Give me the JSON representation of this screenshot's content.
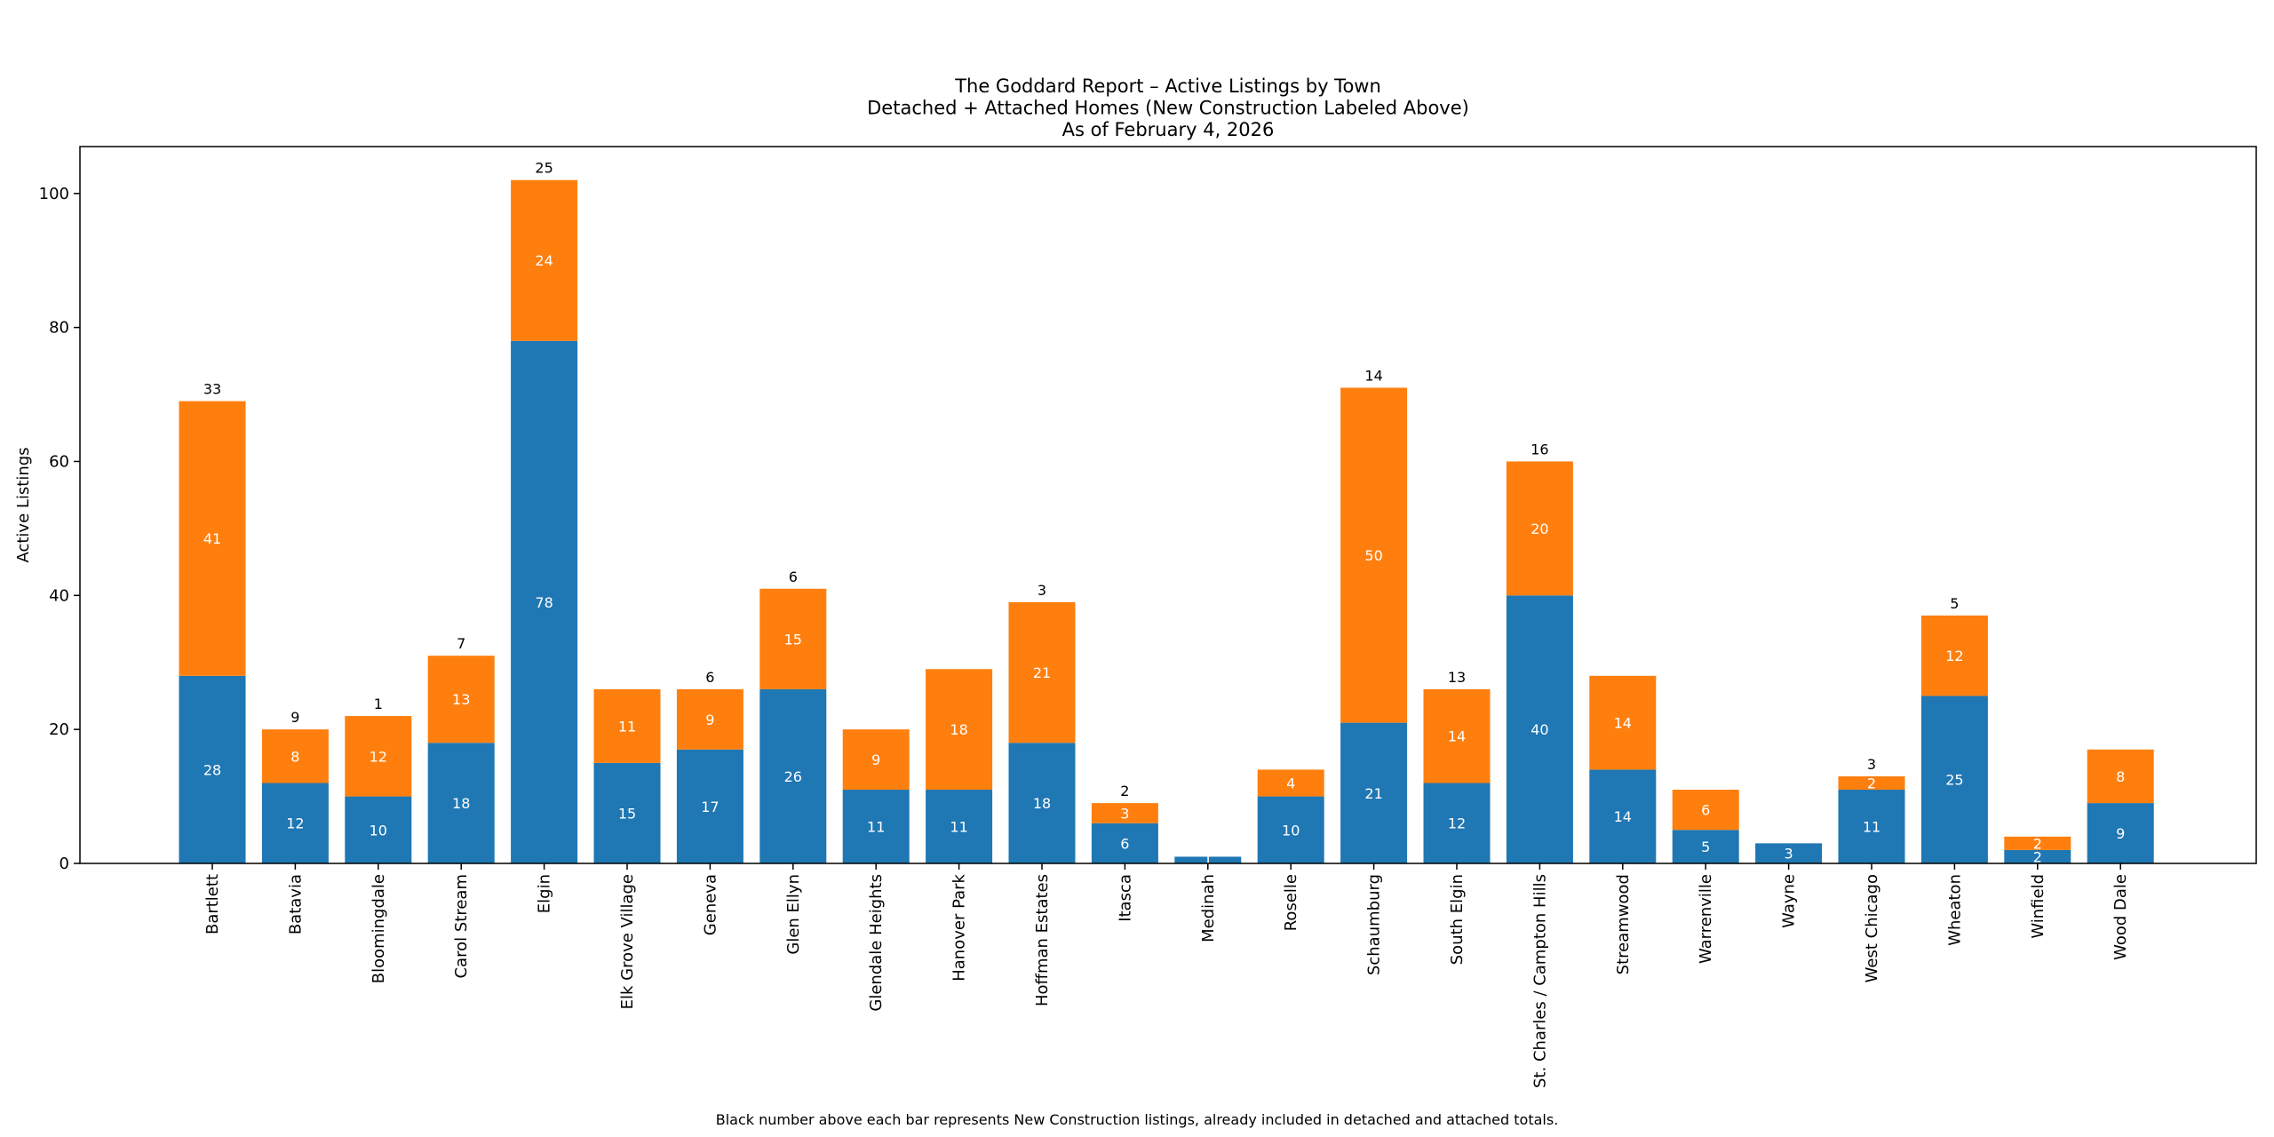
{
  "chart_data": {
    "type": "bar",
    "stacked": true,
    "title_lines": [
      "The Goddard Report – Active Listings by Town",
      "Detached + Attached Homes (New Construction Labeled Above)",
      "As of February 4, 2026"
    ],
    "xlabel": "",
    "ylabel": "Active Listings",
    "ylim": [
      0,
      107
    ],
    "yticks": [
      0,
      20,
      40,
      60,
      80,
      100
    ],
    "categories": [
      "Bartlett",
      "Batavia",
      "Bloomingdale",
      "Carol Stream",
      "Elgin",
      "Elk Grove Village",
      "Geneva",
      "Glen Ellyn",
      "Glendale Heights",
      "Hanover Park",
      "Hoffman Estates",
      "Itasca",
      "Medinah",
      "Roselle",
      "Schaumburg",
      "South Elgin",
      "St. Charles / Campton Hills",
      "Streamwood",
      "Warrenville",
      "Wayne",
      "West Chicago",
      "Wheaton",
      "Winfield",
      "Wood Dale"
    ],
    "series": [
      {
        "name": "Detached",
        "color": "#1f77b4",
        "values": [
          28,
          12,
          10,
          18,
          78,
          15,
          17,
          26,
          11,
          11,
          18,
          6,
          1,
          10,
          21,
          12,
          40,
          14,
          5,
          3,
          11,
          25,
          2,
          9
        ]
      },
      {
        "name": "Attached",
        "color": "#ff7f0e",
        "values": [
          41,
          8,
          12,
          13,
          24,
          11,
          9,
          15,
          9,
          18,
          21,
          3,
          0,
          4,
          50,
          14,
          20,
          14,
          6,
          0,
          2,
          12,
          2,
          8
        ]
      }
    ],
    "new_construction": [
      33,
      9,
      1,
      7,
      25,
      null,
      6,
      6,
      null,
      null,
      3,
      2,
      null,
      null,
      14,
      13,
      16,
      null,
      null,
      null,
      3,
      5,
      null,
      null
    ],
    "footnote": "Black number above each bar represents New Construction listings, already included in detached and attached totals.",
    "grid": false,
    "legend": "none"
  }
}
